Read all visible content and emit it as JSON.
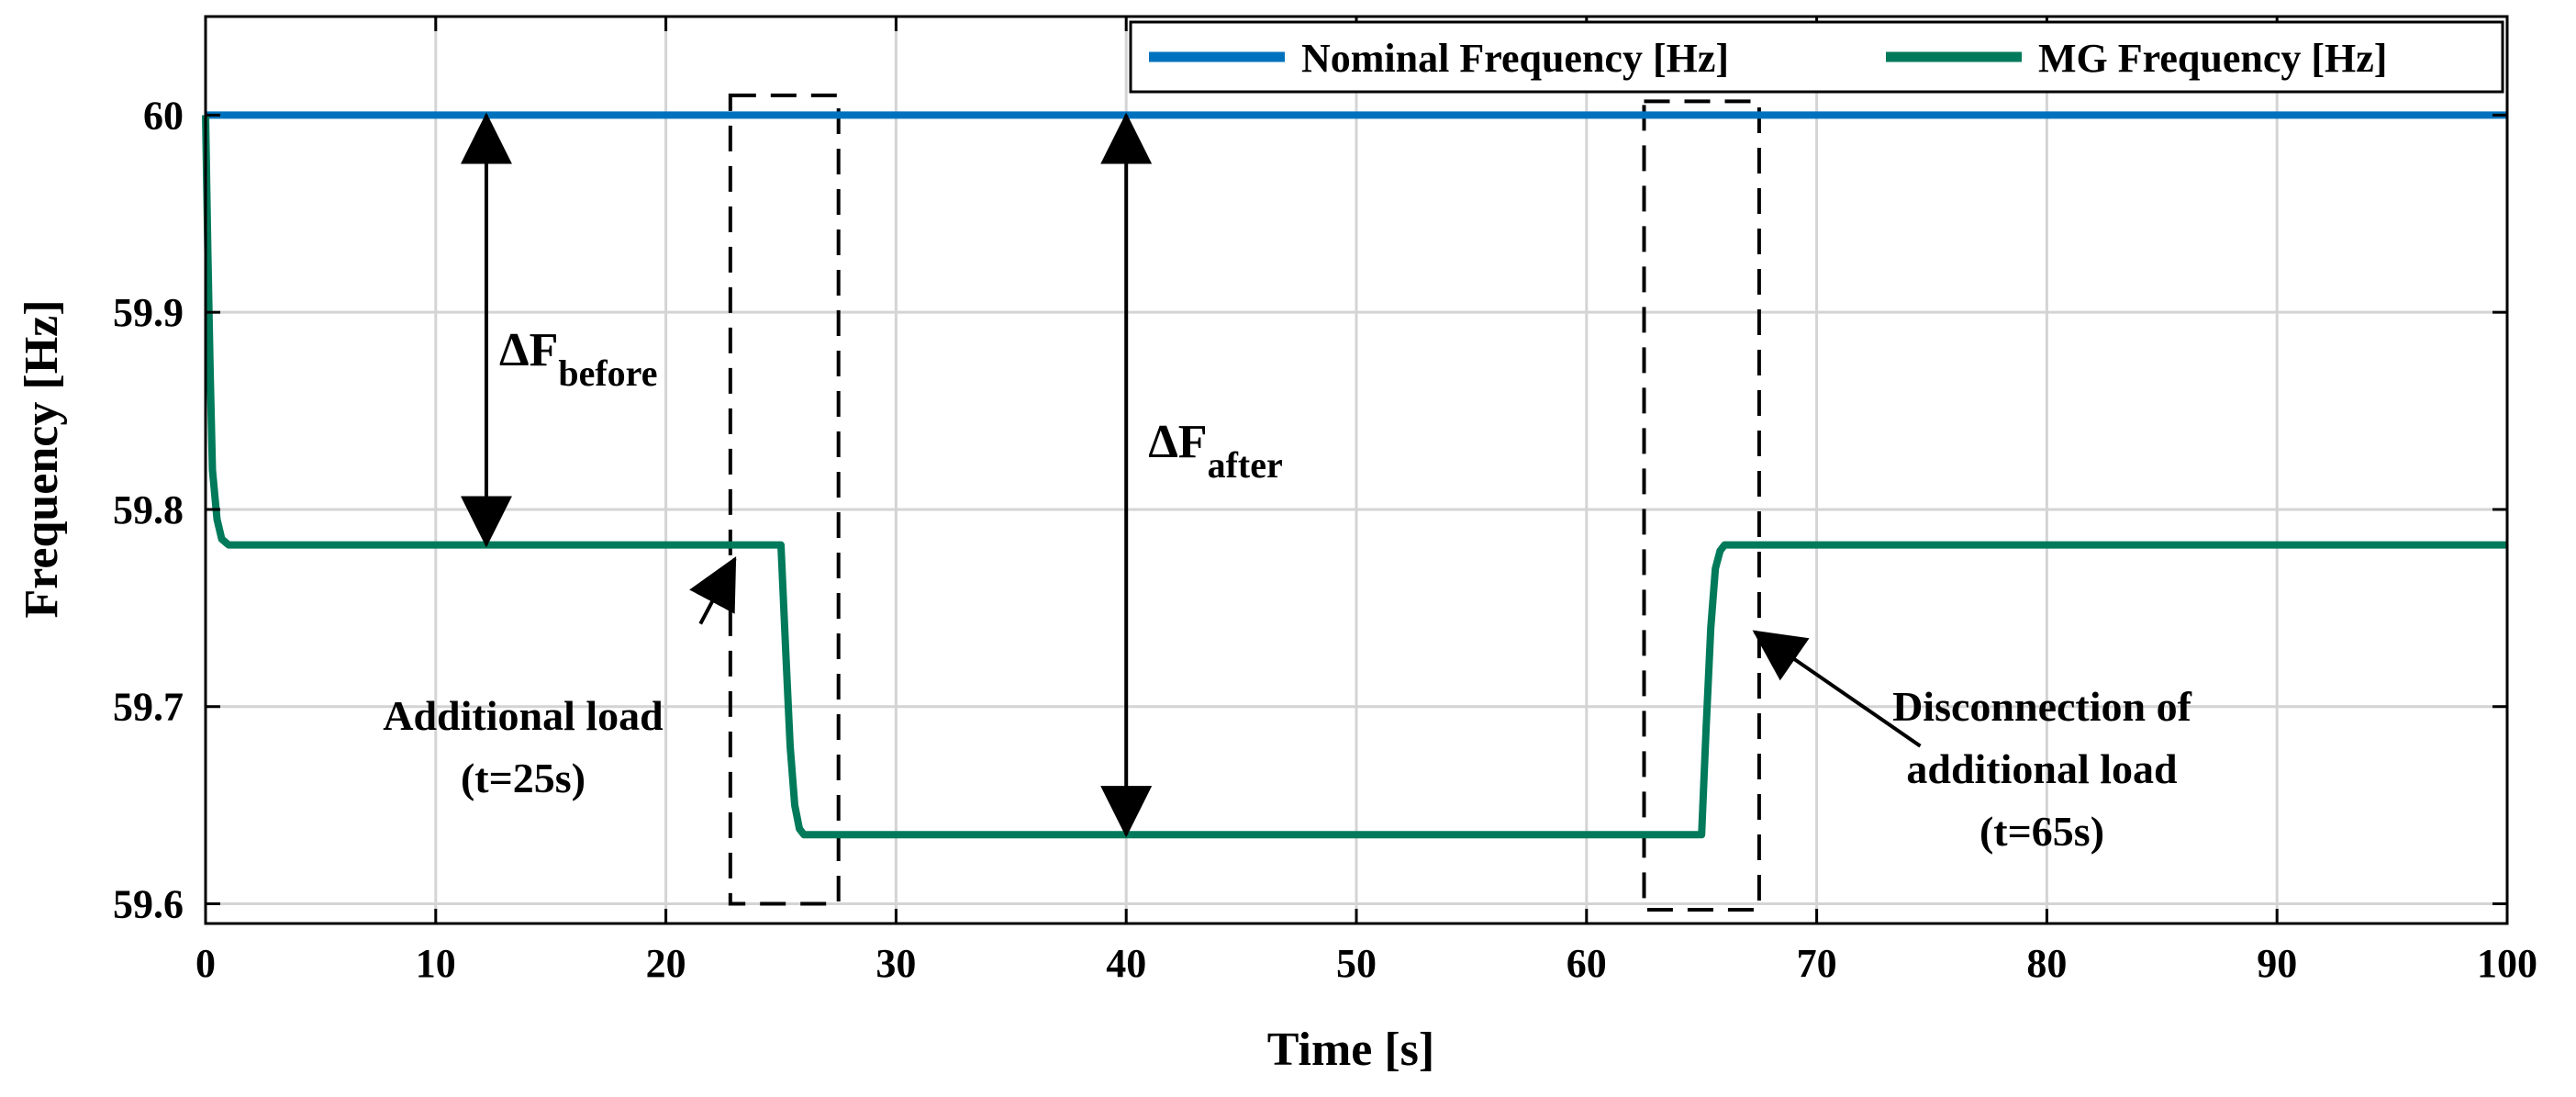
{
  "chart_data": {
    "type": "line",
    "title": "",
    "xlabel": "Time [s]",
    "ylabel": "Frequency [Hz]",
    "xlim": [
      0,
      100
    ],
    "ylim": [
      59.59,
      60.05
    ],
    "xticks": [
      0,
      10,
      20,
      30,
      40,
      50,
      60,
      70,
      80,
      90,
      100
    ],
    "yticks": [
      59.6,
      59.7,
      59.8,
      59.9,
      60
    ],
    "xtick_labels": [
      "0",
      "10",
      "20",
      "30",
      "40",
      "50",
      "60",
      "70",
      "80",
      "90",
      "100"
    ],
    "ytick_labels": [
      "59.6",
      "59.7",
      "59.8",
      "59.9",
      "60"
    ],
    "grid": true,
    "legend_position": "top-right",
    "series": [
      {
        "name": "Nominal Frequency [Hz]",
        "color": "#0072bd",
        "x": [
          0,
          100
        ],
        "y": [
          60,
          60
        ]
      },
      {
        "name": "MG Frequency [Hz]",
        "color": "#007a5a",
        "x": [
          0,
          0.1,
          0.2,
          0.3,
          0.5,
          0.7,
          1.0,
          25,
          25.2,
          25.4,
          25.6,
          25.8,
          26.0,
          65,
          65.2,
          65.4,
          65.6,
          65.8,
          66.0,
          100
        ],
        "y": [
          60,
          59.93,
          59.87,
          59.82,
          59.795,
          59.785,
          59.782,
          59.782,
          59.73,
          59.68,
          59.65,
          59.638,
          59.635,
          59.635,
          59.69,
          59.74,
          59.77,
          59.779,
          59.782,
          59.782
        ]
      }
    ],
    "highlight_boxes": [
      {
        "x": [
          22.8,
          27.5
        ],
        "y": [
          59.6,
          60.01
        ]
      },
      {
        "x": [
          62.5,
          67.5
        ],
        "y": [
          59.597,
          60.007
        ]
      }
    ],
    "annotations": [
      {
        "line1": "Additional load",
        "line2": "(t=25s)",
        "arrow_from": [
          21.5,
          59.742
        ],
        "arrow_to": [
          23.0,
          59.775
        ]
      },
      {
        "line1": "Disconnection of",
        "line2": "additional load",
        "line3": "(t=65s)",
        "arrow_from": [
          74.5,
          59.68
        ],
        "arrow_to": [
          67.3,
          59.738
        ]
      }
    ],
    "delta_markers": [
      {
        "symbol": "ΔF",
        "subscript": "before",
        "x": 12.2,
        "y_top": 60,
        "y_bottom": 59.782
      },
      {
        "symbol": "ΔF",
        "subscript": "after",
        "x": 40.0,
        "y_top": 60,
        "y_bottom": 59.635
      }
    ]
  }
}
